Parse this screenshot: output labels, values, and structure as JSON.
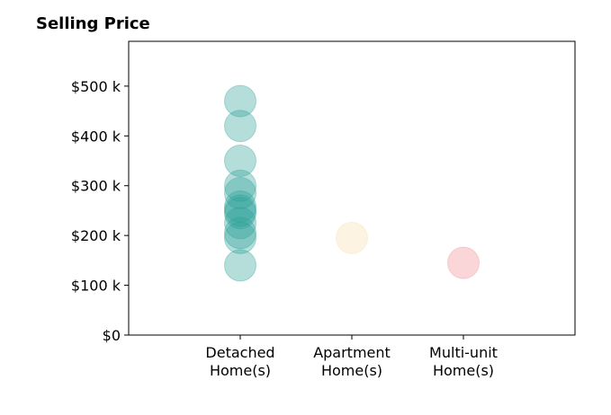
{
  "chart_data": {
    "type": "scatter",
    "title": "Selling Price",
    "xlabel": "",
    "ylabel": "",
    "categories": [
      [
        "Detached",
        "Home(s)"
      ],
      [
        "Apartment",
        "Home(s)"
      ],
      [
        "Multi-unit",
        "Home(s)"
      ]
    ],
    "ylim": [
      0,
      590000
    ],
    "yticks": [
      0,
      100000,
      200000,
      300000,
      400000,
      500000
    ],
    "ytick_labels": [
      "$0",
      "$100 k",
      "$200 k",
      "$300 k",
      "$400 k",
      "$500 k"
    ],
    "grid": false,
    "series": [
      {
        "category_index": 0,
        "color": "#2aa198",
        "values": [
          470000,
          420000,
          350000,
          300000,
          285000,
          258000,
          250000,
          245000,
          225000,
          205000,
          195000,
          140000
        ]
      },
      {
        "category_index": 1,
        "color": "#f5deb0",
        "values": [
          195000
        ]
      },
      {
        "category_index": 2,
        "color": "#f08a91",
        "values": [
          145000
        ]
      }
    ]
  }
}
